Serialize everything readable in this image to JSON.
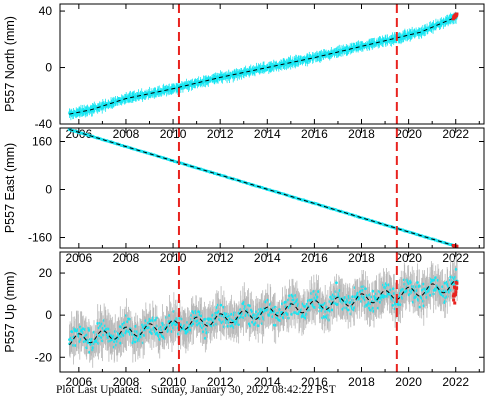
{
  "chart_data": [
    {
      "type": "scatter",
      "ylabel": "P557 North (mm)",
      "xlim": [
        2005.2,
        2023.2
      ],
      "ylim": [
        -40,
        45
      ],
      "x_ticks": [
        2006,
        2008,
        2010,
        2012,
        2014,
        2016,
        2018,
        2020,
        2022
      ],
      "y_ticks": [
        -40,
        0,
        40
      ],
      "events": [
        2010.25,
        2019.5
      ],
      "series": [
        {
          "role": "observations",
          "color": "#17e6f2",
          "x": [
            2005.6,
            2022.05
          ],
          "y": [
            -35,
            37
          ],
          "errorbar_mm": 3
        },
        {
          "role": "model",
          "color": "#000000",
          "x": [
            2005.6,
            2006.5,
            2008.0,
            2010.0,
            2012.0,
            2014.0,
            2016.0,
            2018.0,
            2019.5,
            2020.5,
            2022.05
          ],
          "y": [
            -33,
            -30,
            -22,
            -15,
            -7,
            0,
            7,
            15,
            21,
            25,
            36
          ]
        },
        {
          "role": "latest",
          "color": "#e8231f",
          "x": [
            2021.9,
            2022.05
          ],
          "y": [
            35,
            38
          ]
        }
      ]
    },
    {
      "type": "scatter",
      "ylabel": "P557 East (mm)",
      "xlim": [
        2005.2,
        2023.2
      ],
      "ylim": [
        -195,
        205
      ],
      "x_ticks": [
        2006,
        2008,
        2010,
        2012,
        2014,
        2016,
        2018,
        2020,
        2022
      ],
      "y_ticks": [
        -160,
        0,
        160
      ],
      "events": [
        2010.25,
        2019.5
      ],
      "series": [
        {
          "role": "observations",
          "color": "#17e6f2",
          "x": [
            2005.6,
            2022.05
          ],
          "y": [
            200,
            -190
          ],
          "errorbar_mm": 3
        },
        {
          "role": "model",
          "color": "#000000",
          "x": [
            2005.6,
            2022.05
          ],
          "y": [
            200,
            -190
          ]
        },
        {
          "role": "latest",
          "color": "#e8231f",
          "x": [
            2021.9,
            2022.05
          ],
          "y": [
            -187,
            -190
          ]
        }
      ]
    },
    {
      "type": "scatter",
      "ylabel": "P557 Up (mm)",
      "xlim": [
        2005.2,
        2023.2
      ],
      "ylim": [
        -27,
        30
      ],
      "x_ticks": [
        2006,
        2008,
        2010,
        2012,
        2014,
        2016,
        2018,
        2020,
        2022
      ],
      "y_ticks": [
        -20,
        0,
        20
      ],
      "events": [
        2010.25,
        2019.5
      ],
      "series": [
        {
          "role": "observations",
          "color": "#17e6f2",
          "x": [
            2005.6,
            2022.05
          ],
          "y": [
            -13,
            14
          ],
          "scatter_mm": 5,
          "errorbar_mm": 7,
          "errorbar_color": "#b8b8b8"
        },
        {
          "role": "model",
          "color": "#000000",
          "x": [
            2005.6,
            2022.05
          ],
          "y": [
            -12,
            14
          ],
          "annual_amplitude_mm": 2.5
        },
        {
          "role": "latest",
          "color": "#e8231f",
          "x": [
            2021.9,
            2022.05
          ],
          "y": [
            8,
            14
          ]
        }
      ]
    }
  ],
  "footer": {
    "label": "Plot Last Updated:",
    "timestamp": "Sunday, January 30, 2022 08:42:22 PST"
  }
}
